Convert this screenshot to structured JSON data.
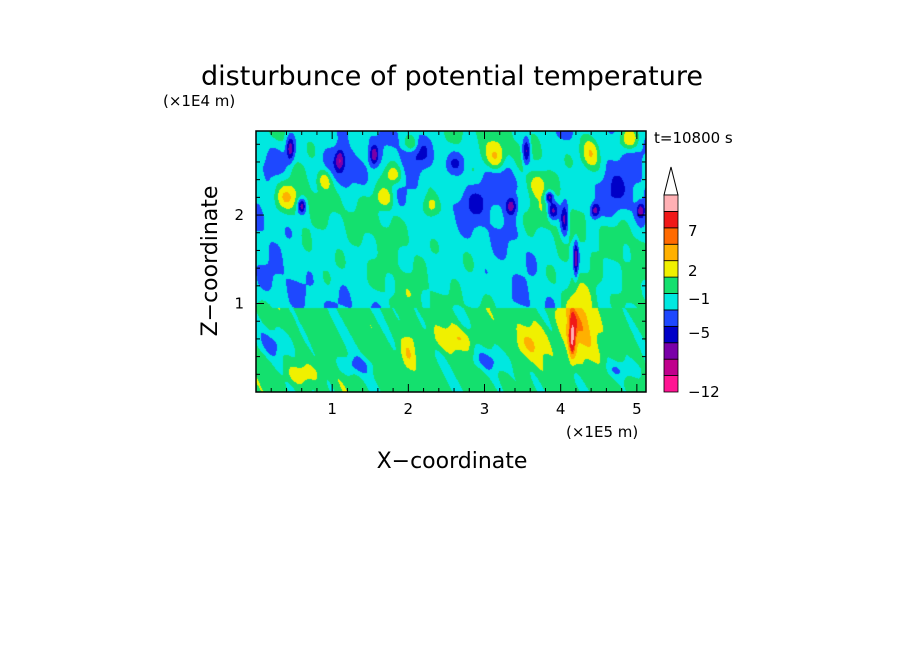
{
  "chart_data": {
    "type": "heatmap",
    "title": "disturbunce of potential temperature",
    "time_label": "t=10800 s",
    "xlabel": "X−coordinate",
    "ylabel": "Z−coordinate",
    "x_unit_label": "(×1E5 m)",
    "y_unit_label": "(×1E4 m)",
    "x_ticks": [
      "1",
      "2",
      "3",
      "4",
      "5"
    ],
    "y_ticks": [
      "1",
      "2"
    ],
    "xlim": [
      0,
      5.12
    ],
    "ylim": [
      0,
      2.95
    ],
    "colorbar": {
      "labels": [
        "7",
        "2",
        "−1",
        "−5",
        "−12"
      ],
      "colors": [
        "#ff1493",
        "#c0008c",
        "#7a00a8",
        "#0000c8",
        "#1e48ff",
        "#00e8e0",
        "#14e06e",
        "#f0f000",
        "#ffb000",
        "#ff6a00",
        "#f01818",
        "#ffb0b4"
      ],
      "extend_top_color": "#ffffff"
    },
    "blobs": [
      [
        0.45,
        2.75,
        0.05,
        0.13,
        -1
      ],
      [
        1.1,
        2.62,
        0.05,
        0.1,
        -1
      ],
      [
        3.35,
        2.1,
        0.07,
        0.1,
        -1
      ],
      [
        3.9,
        2.05,
        0.07,
        0.1,
        -1
      ],
      [
        3.85,
        2.2,
        0.05,
        0.06,
        -1
      ],
      [
        1.55,
        2.68,
        0.05,
        0.1,
        -1
      ],
      [
        4.45,
        2.05,
        0.06,
        0.08,
        -1
      ],
      [
        5.05,
        2.05,
        0.05,
        0.08,
        -1
      ],
      [
        4.05,
        1.95,
        0.05,
        0.18,
        -1
      ],
      [
        4.2,
        1.5,
        0.03,
        0.2,
        -1
      ],
      [
        1.15,
        2.55,
        0.22,
        0.22,
        -0.5
      ],
      [
        2.15,
        2.7,
        0.2,
        0.2,
        -0.5
      ],
      [
        3.25,
        2.35,
        0.25,
        0.25,
        -0.5
      ],
      [
        4.7,
        2.3,
        0.25,
        0.3,
        -0.5
      ],
      [
        0.2,
        2.6,
        0.2,
        0.25,
        -0.5
      ],
      [
        2.85,
        2.15,
        0.2,
        0.2,
        -0.5
      ],
      [
        3.55,
        2.72,
        0.05,
        0.15,
        -1
      ],
      [
        0.6,
        2.1,
        0.05,
        0.08,
        -1
      ],
      [
        2.6,
        2.58,
        0.12,
        0.12,
        -0.5
      ],
      [
        0.9,
        2.4,
        0.1,
        0.12,
        0.6
      ],
      [
        1.7,
        2.2,
        0.12,
        0.12,
        0.6
      ],
      [
        2.3,
        2.1,
        0.12,
        0.15,
        0.7
      ],
      [
        3.15,
        2.65,
        0.12,
        0.15,
        0.7
      ],
      [
        4.4,
        2.7,
        0.12,
        0.18,
        0.8
      ],
      [
        4.25,
        0.8,
        0.25,
        0.4,
        0.7
      ],
      [
        4.15,
        0.6,
        0.05,
        0.25,
        1
      ],
      [
        3.6,
        0.55,
        0.2,
        0.2,
        0.5
      ],
      [
        1.8,
        2.45,
        0.12,
        0.12,
        0.6
      ],
      [
        0.4,
        2.2,
        0.12,
        0.12,
        0.5
      ],
      [
        2.05,
        2.8,
        0.1,
        0.1,
        0.6
      ],
      [
        3.7,
        2.35,
        0.1,
        0.12,
        0.6
      ],
      [
        4.9,
        2.85,
        0.12,
        0.12,
        0.7
      ],
      [
        2.0,
        0.45,
        0.1,
        0.2,
        0.5
      ],
      [
        0.25,
        0.55,
        0.25,
        0.15,
        -0.35
      ],
      [
        1.3,
        0.3,
        0.25,
        0.1,
        -0.35
      ],
      [
        3.05,
        0.35,
        0.3,
        0.12,
        -0.35
      ],
      [
        4.8,
        0.25,
        0.25,
        0.1,
        -0.35
      ],
      [
        2.6,
        0.6,
        0.3,
        0.12,
        0.4
      ],
      [
        0.6,
        0.2,
        0.2,
        0.1,
        0.4
      ]
    ]
  }
}
